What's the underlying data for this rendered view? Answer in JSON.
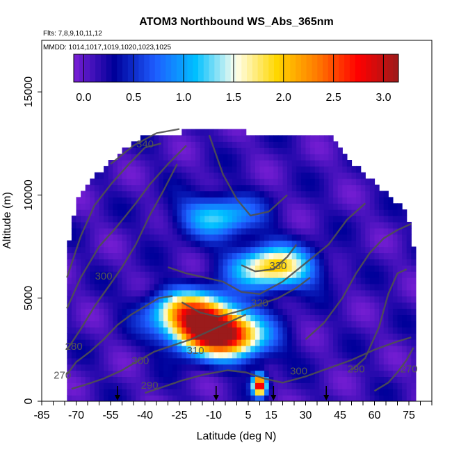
{
  "chart_data": {
    "type": "heatmap",
    "title": "ATOM3 Northbound WS_Abs_365nm",
    "subtitle_flights": "Flts: 7,8,9,10,11,12",
    "subtitle_dates": "MMDD: 1014,1017,1019,1020,1023,1025",
    "xlabel": "Latitude (deg N)",
    "ylabel": "Altitude (m)",
    "xlim": [
      -85,
      85
    ],
    "ylim": [
      0,
      17500
    ],
    "x_ticks": [
      -85,
      -70,
      -55,
      -40,
      -25,
      -10,
      5,
      15,
      30,
      45,
      60,
      75
    ],
    "y_ticks": [
      0,
      5000,
      10000,
      15000
    ],
    "colorbar": {
      "range": [
        -0.1,
        3.15
      ],
      "ticks": [
        0.0,
        0.5,
        1.0,
        1.5,
        2.0,
        2.5,
        3.0
      ],
      "tick_labels": [
        "0.0",
        "0.5",
        "1.0",
        "1.5",
        "2.0",
        "2.5",
        "3.0"
      ],
      "colors": [
        "#7b1fd6",
        "#00009a",
        "#1e5cff",
        "#00bfff",
        "#ffffee",
        "#ffd700",
        "#ff7a00",
        "#ff0000",
        "#9b1b1b"
      ]
    },
    "background_value": 0.12,
    "hotspots": [
      {
        "lat": -10,
        "alt": 3400,
        "peak": 3.0
      },
      {
        "lat": -20,
        "alt": 4400,
        "peak": 1.9
      },
      {
        "lat": 16,
        "alt": 6500,
        "peak": 1.9
      },
      {
        "lat": -8,
        "alt": 9000,
        "peak": 1.1
      },
      {
        "lat": 10,
        "alt": 800,
        "peak": 2.9
      },
      {
        "lat": 0,
        "alt": 2800,
        "peak": 0.8
      }
    ],
    "contour_labels": [
      {
        "text": "340",
        "lat": -40,
        "alt": 12300
      },
      {
        "text": "330",
        "lat": 18,
        "alt": 6400
      },
      {
        "text": "320",
        "lat": 10,
        "alt": 4600
      },
      {
        "text": "310",
        "lat": -18,
        "alt": 2300
      },
      {
        "text": "300",
        "lat": -58,
        "alt": 5900
      },
      {
        "text": "300",
        "lat": -42,
        "alt": 1800
      },
      {
        "text": "300",
        "lat": 27,
        "alt": 1300
      },
      {
        "text": "290",
        "lat": -38,
        "alt": 600
      },
      {
        "text": "290",
        "lat": 52,
        "alt": 1400
      },
      {
        "text": "280",
        "lat": -71,
        "alt": 2500
      },
      {
        "text": "270",
        "lat": -76,
        "alt": 1100
      },
      {
        "text": "270",
        "lat": 75,
        "alt": 1400
      }
    ],
    "profile_markers_lat": [
      -52,
      -9,
      16,
      39
    ]
  }
}
